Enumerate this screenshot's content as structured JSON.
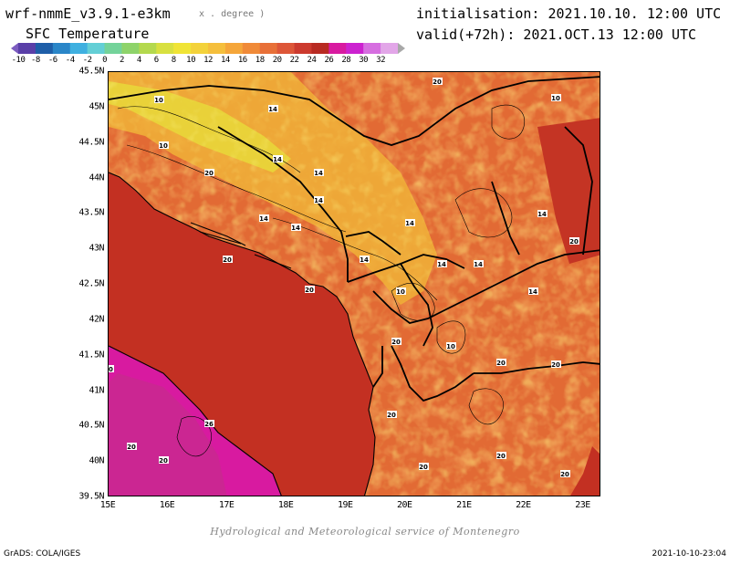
{
  "header": {
    "model_title": "wrf-nmmE_v3.9.1-e3km",
    "model_unit": "x . degree )",
    "variable_title": "SFC Temperature",
    "init_text": "initialisation: 2021.10.10. 12:00 UTC",
    "valid_text": "valid(+72h): 2021.OCT.13 12:00 UTC"
  },
  "colorbar": {
    "labels": [
      "-10",
      "-8",
      "-6",
      "-4",
      "-2",
      "0",
      "2",
      "4",
      "6",
      "8",
      "10",
      "12",
      "14",
      "16",
      "18",
      "20",
      "22",
      "24",
      "26",
      "28",
      "30",
      "32"
    ],
    "colors": [
      "#7c5cc0",
      "#5a3fa8",
      "#1e5ea8",
      "#2a86c8",
      "#3fb0e0",
      "#63cfd6",
      "#74d39a",
      "#8ed36a",
      "#b4d94e",
      "#d8e040",
      "#f0e436",
      "#f3d23a",
      "#f5bf3c",
      "#f5a63a",
      "#f08a38",
      "#e87038",
      "#dd5638",
      "#cc3a2e",
      "#b82a22",
      "#d81aa0",
      "#cc22d0",
      "#d66ee0",
      "#e2a6e8",
      "#a8a8a8"
    ]
  },
  "map": {
    "lat_labels": [
      "45.5N",
      "45N",
      "44.5N",
      "44N",
      "43.5N",
      "43N",
      "42.5N",
      "42N",
      "41.5N",
      "41N",
      "40.5N",
      "40N",
      "39.5N"
    ],
    "lon_labels": [
      "15E",
      "16E",
      "17E",
      "18E",
      "19E",
      "20E",
      "21E",
      "22E",
      "23E"
    ],
    "lon_range": [
      15,
      23.3
    ],
    "lat_range": [
      39.5,
      45.5
    ],
    "contour_labels": [
      "10",
      "10",
      "10",
      "10",
      "10",
      "14",
      "14",
      "14",
      "14",
      "14",
      "14",
      "14",
      "14",
      "14",
      "14",
      "14",
      "14",
      "20",
      "20",
      "20",
      "20",
      "20",
      "20",
      "20",
      "20",
      "20",
      "20",
      "20",
      "20",
      "20",
      "20",
      "20",
      "26"
    ]
  },
  "footer": {
    "credit": "Hydrological and Meteorological service of Montenegro",
    "software": "GrADS: COLA/IGES",
    "render_time": "2021-10-10-23:04"
  }
}
